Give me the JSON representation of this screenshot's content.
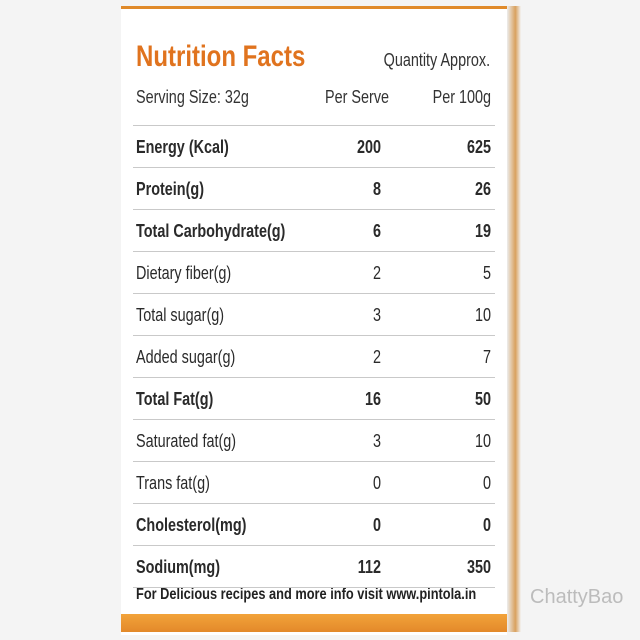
{
  "header": {
    "title": "Nutrition Facts",
    "note": "Quantity Approx.",
    "serving_size": "Serving Size: 32g",
    "col_per_serve": "Per Serve",
    "col_per_100g": "Per 100g"
  },
  "table": {
    "rows": [
      [
        "Energy (Kcal)",
        200,
        625
      ],
      [
        "Protein(g)",
        8,
        26
      ],
      [
        "Total Carbohydrate(g)",
        6,
        19
      ],
      [
        "Dietary fiber(g)",
        2,
        5
      ],
      [
        "Total sugar(g)",
        3,
        10
      ],
      [
        "Added sugar(g)",
        2,
        7
      ],
      [
        "Total Fat(g)",
        16,
        50
      ],
      [
        "Saturated fat(g)",
        3,
        10
      ],
      [
        "Trans fat(g)",
        0,
        0
      ],
      [
        "Cholesterol(mg)",
        0,
        0
      ],
      [
        "Sodium(mg)",
        112,
        350
      ]
    ]
  },
  "footer": "For Delicious recipes and more info visit www.pintola.in",
  "watermark": "ChattyBao"
}
